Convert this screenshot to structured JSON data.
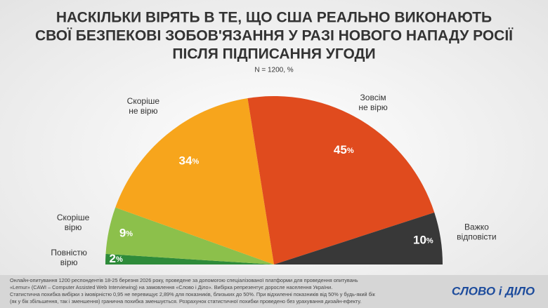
{
  "chart_data": {
    "type": "semipie",
    "title": [
      "НАСКІЛЬКИ ВІРЯТЬ В ТЕ, ЩО США РЕАЛЬНО ВИКОНАЮТЬ",
      "СВОЇ БЕЗПЕКОВІ ЗОБОВ'ЯЗАННЯ У РАЗІ НОВОГО НАПАДУ РОСІЇ",
      "ПІСЛЯ ПІДПИСАННЯ УГОДИ"
    ],
    "subtitle": "N = 1200, %",
    "categories": [
      "Повністю\nвірю",
      "Скоріше\nвірю",
      "Скоріше\nне вірю",
      "Зовсім\nне вірю",
      "Важко\nвідповісти"
    ],
    "values": [
      2,
      9,
      34,
      45,
      10
    ],
    "value_labels": [
      "2%",
      "9%",
      "34%",
      "45%",
      "10%"
    ],
    "colors": [
      "#2e8b3a",
      "#8cc04b",
      "#f7a51c",
      "#e04b1e",
      "#383838"
    ]
  },
  "footer": {
    "note": [
      "Онлайн-опитування 1200 респондентів 18-25 березня 2026 року, проведене за допомогою спеціалізованої платформи для проведення опитувань",
      "«Lemur» (CAWI – Computer Assisted Web Interviewing) на замовлення «Слово і Діло». Вибірка репрезентує доросле населення України.",
      "Статистична похибка вибірки з імовірністю 0,95 не перевищує 2,89% для показників, близьких до 50%. При відхиленні показників від 50% у будь-який бік",
      "(як у бік збільшення, так і зменшення) гранична похибка зменшується. Розрахунок статистичної похибки проведено без урахування дизайн-ефекту."
    ],
    "logo": "СЛОВО і ДІЛО"
  }
}
